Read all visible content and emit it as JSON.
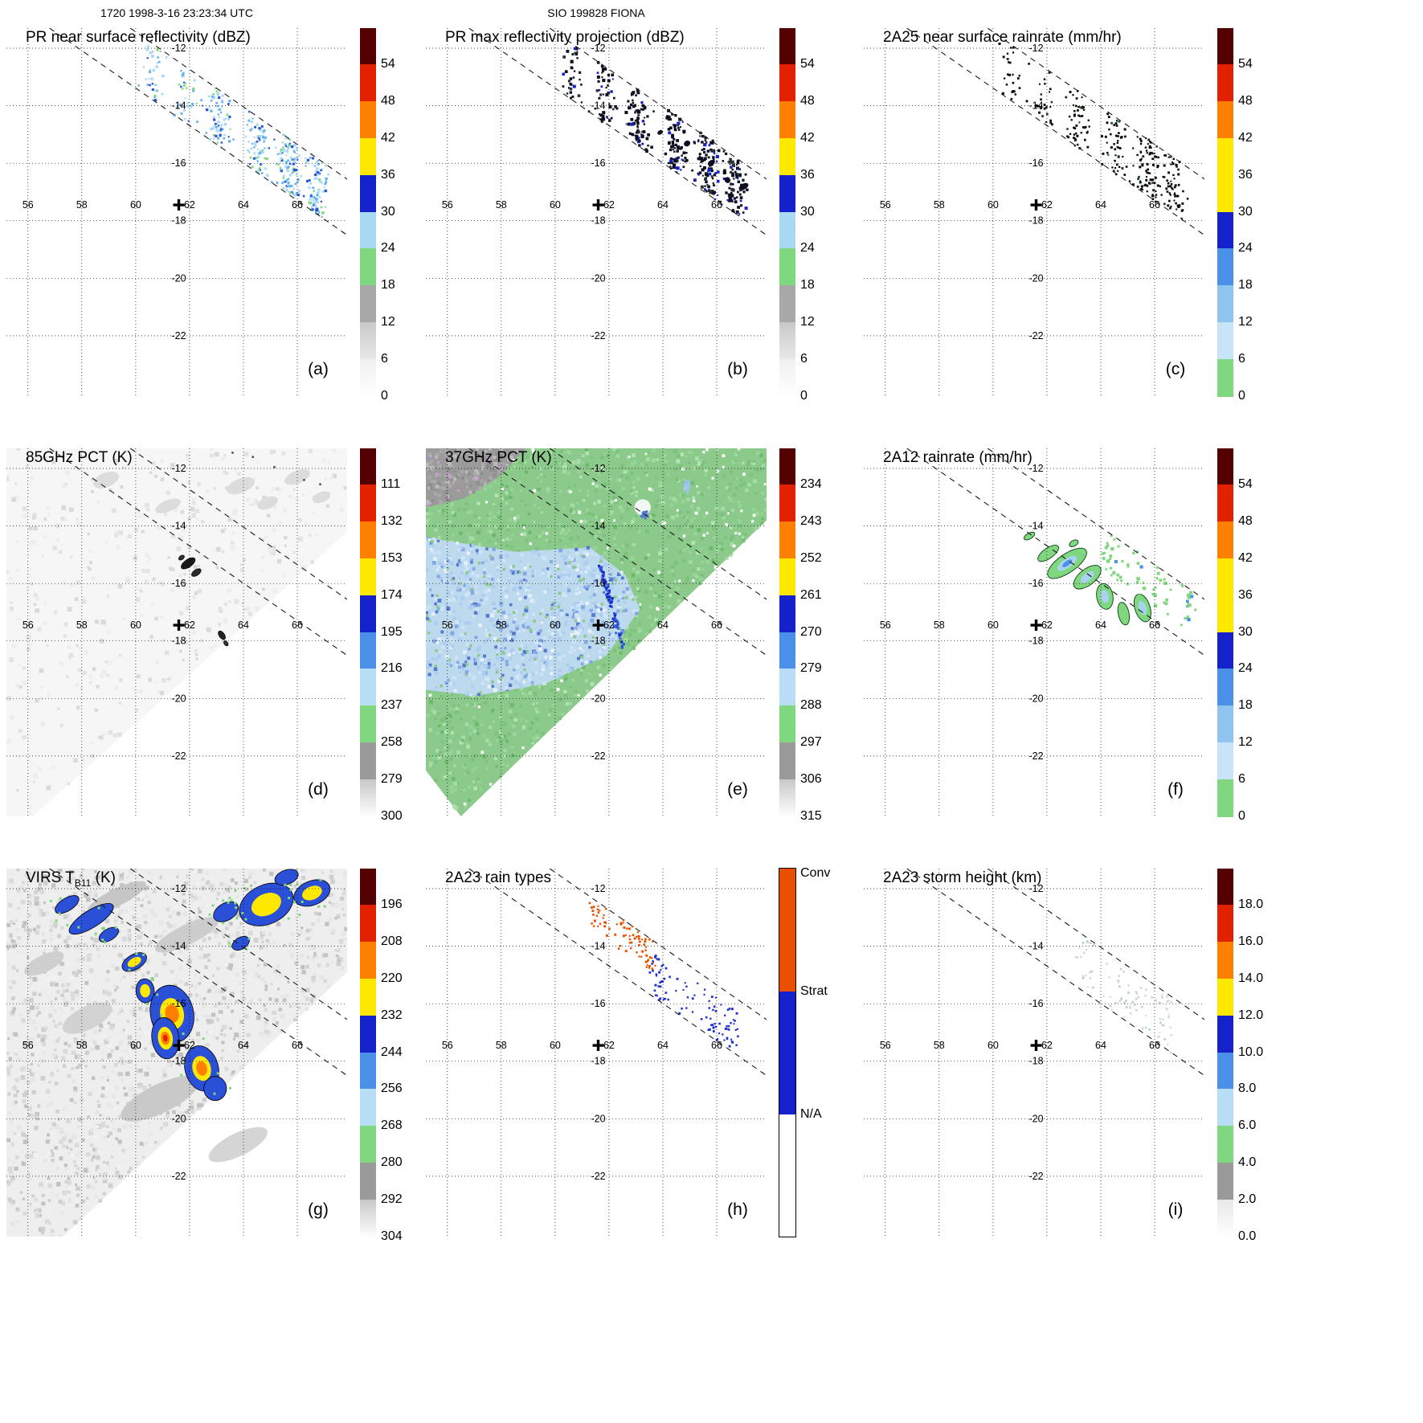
{
  "header": {
    "timestamp": "1720 1998-3-16 23:23:34 UTC",
    "storm_id": "SIO 199828 FIONA"
  },
  "geo": {
    "lon_ticks": [
      "56",
      "58",
      "60",
      "62",
      "64",
      "66"
    ],
    "lat_ticks": [
      "-12",
      "-14",
      "-16",
      "-18",
      "-20",
      "-22"
    ],
    "lon_tick_values": [
      56,
      58,
      60,
      62,
      64,
      66
    ],
    "lat_tick_values": [
      -12,
      -14,
      -16,
      -18,
      -20,
      -22
    ],
    "lon_range": [
      55.2,
      67.85
    ],
    "lat_range": [
      -24.1,
      -11.3
    ],
    "storm_center": {
      "lon": 61.6,
      "lat": -17.45
    },
    "grid_style": "dotted",
    "swath_edge_lines": "dashed"
  },
  "colorbars": {
    "dbz": {
      "cap": "#550000",
      "segments": [
        "#e32000",
        "#ff7f00",
        "#ffe800",
        "#1522cc",
        "#a8d8f2",
        "#7fd87f",
        "#a8a8a8",
        [
          "#c8c8c8",
          "#e9e9e9"
        ],
        [
          "#f0f0f0",
          "#ffffff"
        ]
      ]
    },
    "rain": {
      "cap": "#550000",
      "segments": [
        "#e32000",
        "#ff7f00",
        "#ffe800",
        "#ffe800",
        "#1522cc",
        "#4a8fe8",
        "#8fc4f0",
        "#c8e4f8",
        "#7fd87f"
      ]
    },
    "pct": {
      "cap": "#550000",
      "segments": [
        "#e32000",
        "#ff7f00",
        "#ffe800",
        "#1522cc",
        "#4a8fe8",
        "#b8ddf6",
        "#7fd87f",
        "#9a9a9a",
        [
          "#c8c8c8",
          "#ffffff"
        ]
      ]
    },
    "height": {
      "cap": "#550000",
      "segments": [
        "#e32000",
        "#ff7f00",
        "#ffe800",
        "#1522cc",
        "#4a8fe8",
        "#b8ddf6",
        "#7fd87f",
        "#9a9a9a",
        [
          "#e8e8e8",
          "#ffffff"
        ]
      ]
    },
    "raintype": {
      "conv": "#e85000",
      "strat": "#1522cc",
      "na": "#ffffff"
    }
  },
  "chart_data": [
    {
      "type": "map",
      "panel_letter": "(a)",
      "title": "PR near surface reflectivity (dBZ)",
      "units": "dBZ",
      "colorbar": "dbz",
      "colorbar_ticks": [
        "54",
        "48",
        "42",
        "36",
        "30",
        "24",
        "18",
        "12",
        "6",
        "0"
      ],
      "map_kind": "pr_z"
    },
    {
      "type": "map",
      "panel_letter": "(b)",
      "title": "PR max reflectivity projection (dBZ)",
      "units": "dBZ",
      "colorbar": "dbz",
      "colorbar_ticks": [
        "54",
        "48",
        "42",
        "36",
        "30",
        "24",
        "18",
        "12",
        "6",
        "0"
      ],
      "map_kind": "pr_max"
    },
    {
      "type": "map",
      "panel_letter": "(c)",
      "title": "2A25 near surface rainrate (mm/hr)",
      "units": "mm/hr",
      "colorbar": "rain",
      "colorbar_ticks": [
        "54",
        "48",
        "42",
        "36",
        "30",
        "24",
        "18",
        "12",
        "6",
        "0"
      ],
      "map_kind": "rr_2a25"
    },
    {
      "type": "map",
      "panel_letter": "(d)",
      "title": "85GHz PCT (K)",
      "units": "K",
      "colorbar": "pct",
      "colorbar_ticks": [
        "111",
        "132",
        "153",
        "174",
        "195",
        "216",
        "237",
        "258",
        "279",
        "300"
      ],
      "map_kind": "pct85"
    },
    {
      "type": "map",
      "panel_letter": "(e)",
      "title": "37GHz PCT (K)",
      "units": "K",
      "colorbar": "pct",
      "colorbar_ticks": [
        "234",
        "243",
        "252",
        "261",
        "270",
        "279",
        "288",
        "297",
        "306",
        "315"
      ],
      "map_kind": "pct37"
    },
    {
      "type": "map",
      "panel_letter": "(f)",
      "title": "2A12 rainrate (mm/hr)",
      "units": "mm/hr",
      "colorbar": "rain",
      "colorbar_ticks": [
        "54",
        "48",
        "42",
        "36",
        "30",
        "24",
        "18",
        "12",
        "6",
        "0"
      ],
      "map_kind": "rr_2a12"
    },
    {
      "type": "map",
      "panel_letter": "(g)",
      "title": "VIRS TB11 (K)",
      "title_parts": {
        "pre": "VIRS T",
        "sub": "B11",
        "post": " (K)"
      },
      "units": "K",
      "colorbar": "pct",
      "colorbar_ticks": [
        "196",
        "208",
        "220",
        "232",
        "244",
        "256",
        "268",
        "280",
        "292",
        "304"
      ],
      "map_kind": "virs"
    },
    {
      "type": "map",
      "panel_letter": "(h)",
      "title": "2A23 rain types",
      "units": "",
      "colorbar": "raintype",
      "colorbar_ticks": [
        "Conv",
        "Strat",
        "N/A"
      ],
      "map_kind": "raintypes"
    },
    {
      "type": "map",
      "panel_letter": "(i)",
      "title": "2A23 storm height (km)",
      "units": "km",
      "colorbar": "height",
      "colorbar_ticks": [
        "18.0",
        "16.0",
        "14.0",
        "12.0",
        "10.0",
        "8.0",
        "6.0",
        "4.0",
        "2.0",
        "0.0"
      ],
      "map_kind": "height"
    }
  ]
}
